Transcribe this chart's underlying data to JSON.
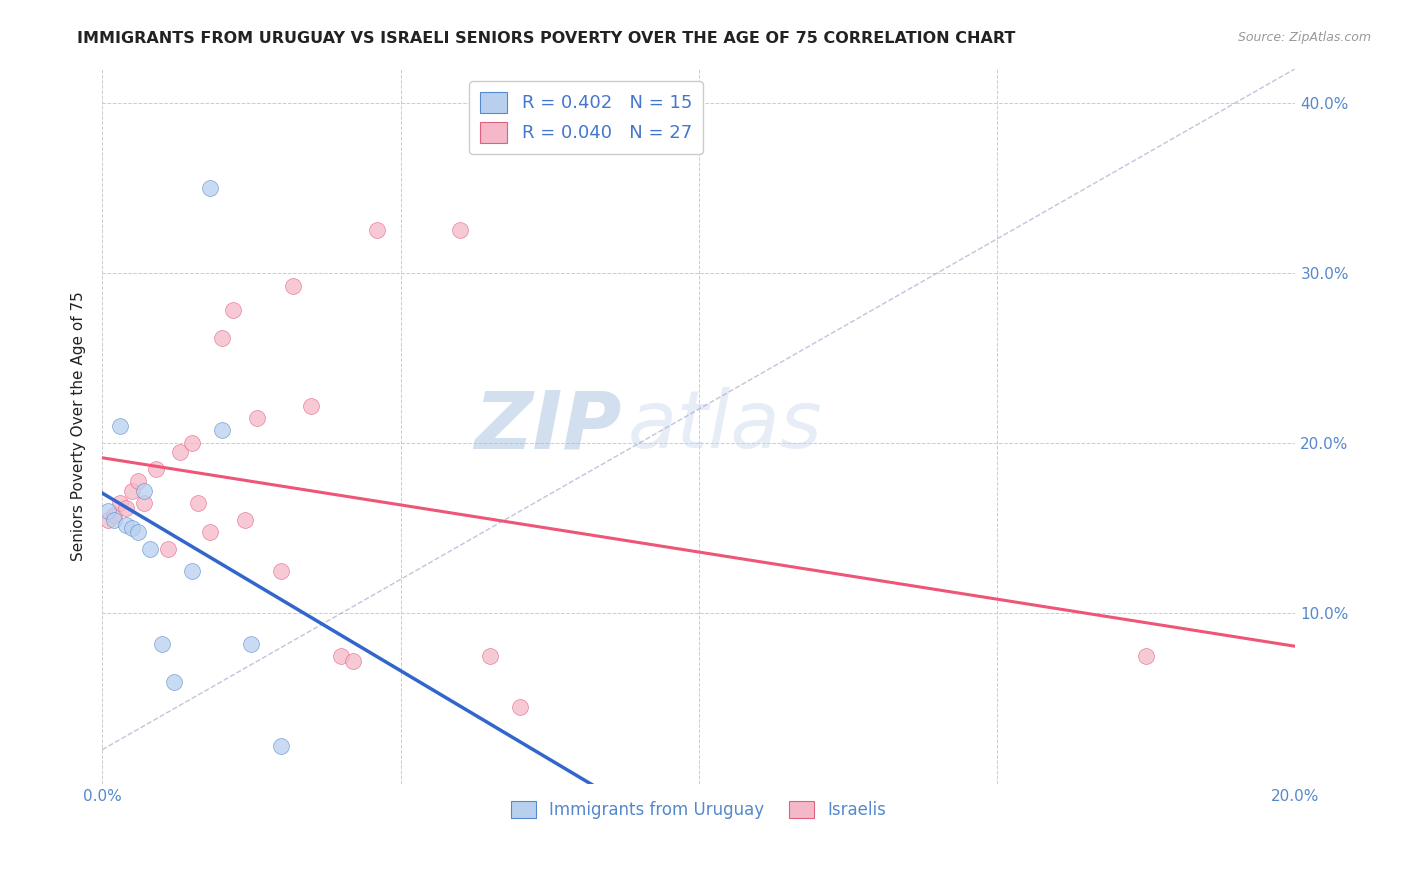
{
  "title": "IMMIGRANTS FROM URUGUAY VS ISRAELI SENIORS POVERTY OVER THE AGE OF 75 CORRELATION CHART",
  "source": "Source: ZipAtlas.com",
  "ylabel": "Seniors Poverty Over the Age of 75",
  "xlim": [
    0.0,
    0.2
  ],
  "ylim": [
    0.0,
    0.42
  ],
  "xticks": [
    0.0,
    0.05,
    0.1,
    0.15,
    0.2
  ],
  "yticks": [
    0.0,
    0.1,
    0.2,
    0.3,
    0.4
  ],
  "xtick_labels": [
    "0.0%",
    "",
    "",
    "",
    "20.0%"
  ],
  "ytick_labels_right": [
    "",
    "10.0%",
    "20.0%",
    "30.0%",
    "40.0%"
  ],
  "watermark_zip": "ZIP",
  "watermark_atlas": "atlas",
  "uruguay_color": "#b8d0ee",
  "uruguay_edge": "#5588cc",
  "israel_color": "#f5b8c8",
  "israel_edge": "#e06080",
  "uruguay_line_color": "#3366cc",
  "israel_line_color": "#ee5577",
  "diag_color": "#aaaacc",
  "uruguay_scatter_x": [
    0.001,
    0.002,
    0.003,
    0.004,
    0.005,
    0.006,
    0.007,
    0.008,
    0.01,
    0.012,
    0.015,
    0.018,
    0.02,
    0.025,
    0.03
  ],
  "uruguay_scatter_y": [
    0.16,
    0.155,
    0.21,
    0.152,
    0.15,
    0.148,
    0.172,
    0.138,
    0.082,
    0.06,
    0.125,
    0.35,
    0.208,
    0.082,
    0.022
  ],
  "israel_scatter_x": [
    0.001,
    0.002,
    0.003,
    0.004,
    0.005,
    0.006,
    0.007,
    0.009,
    0.011,
    0.013,
    0.015,
    0.016,
    0.018,
    0.02,
    0.022,
    0.024,
    0.026,
    0.03,
    0.032,
    0.035,
    0.04,
    0.042,
    0.046,
    0.06,
    0.065,
    0.07,
    0.175
  ],
  "israel_scatter_y": [
    0.155,
    0.158,
    0.165,
    0.162,
    0.172,
    0.178,
    0.165,
    0.185,
    0.138,
    0.195,
    0.2,
    0.165,
    0.148,
    0.262,
    0.278,
    0.155,
    0.215,
    0.125,
    0.292,
    0.222,
    0.075,
    0.072,
    0.325,
    0.325,
    0.075,
    0.045,
    0.075
  ],
  "background_color": "#ffffff",
  "grid_color": "#cccccc",
  "title_color": "#222222",
  "tick_color": "#5588cc",
  "marker_size": 130,
  "marker_alpha": 0.75
}
